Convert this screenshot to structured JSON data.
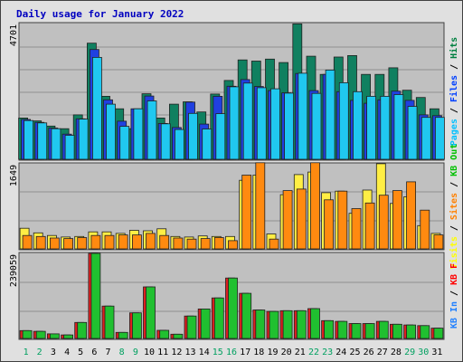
{
  "chart_data": {
    "type": "bar",
    "title": "Daily usage for January 2022",
    "days": [
      "1",
      "2",
      "3",
      "4",
      "5",
      "6",
      "7",
      "8",
      "9",
      "10",
      "11",
      "12",
      "13",
      "14",
      "15",
      "16",
      "17",
      "18",
      "19",
      "20",
      "21",
      "22",
      "23",
      "24",
      "25",
      "26",
      "27",
      "28",
      "29",
      "30",
      "31"
    ],
    "weekend_days": [
      1,
      2,
      8,
      9,
      15,
      16,
      22,
      23,
      29,
      30
    ],
    "panels": [
      {
        "name": "requests",
        "max_label": "4701",
        "ymax": 4701,
        "legend": [
          {
            "text": "Pages",
            "color": "#00c0ff"
          },
          {
            "text": "Files",
            "color": "#0040ff"
          },
          {
            "text": "Hits",
            "color": "#008040"
          }
        ],
        "series": [
          {
            "name": "Hits",
            "color": "#108060",
            "values": [
              1430,
              1330,
              1150,
              1060,
              1540,
              4020,
              2180,
              1750,
              1060,
              2270,
              1430,
              1910,
              1990,
              1640,
              2260,
              2730,
              3440,
              3400,
              3470,
              3350,
              4690,
              3570,
              2940,
              3540,
              3590,
              2940,
              2940,
              3170,
              2390,
              2140,
              1750
            ]
          },
          {
            "name": "Files",
            "color": "#2040e0",
            "values": [
              1380,
              1280,
              1080,
              870,
              1400,
              3800,
              2060,
              1320,
              1750,
              2190,
              1240,
              1100,
              1980,
              1220,
              2180,
              2530,
              2760,
              2520,
              2380,
              2300,
              2970,
              2380,
              2940,
              2340,
              2040,
              1940,
              2060,
              2360,
              2040,
              1540,
              1510
            ]
          },
          {
            "name": "Pages",
            "color": "#20c8f0",
            "values": [
              1340,
              1260,
              1060,
              830,
              1390,
              3530,
              1910,
              1140,
              1750,
              2020,
              1230,
              1030,
              1590,
              1050,
              1580,
              2510,
              2640,
              2480,
              2440,
              2290,
              2980,
              2280,
              3090,
              2650,
              2340,
              2180,
              2180,
              2240,
              1830,
              1450,
              1450
            ]
          }
        ]
      },
      {
        "name": "visitors",
        "max_label": "1649",
        "ymax": 1649,
        "legend": [
          {
            "text": "Visits",
            "color": "#ffff00"
          },
          {
            "text": "Sites",
            "color": "#ff8000"
          },
          {
            "text": "KB Out",
            "color": "#00c000"
          }
        ],
        "series": [
          {
            "name": "Visits",
            "color": "#ffee44",
            "values": [
              400,
              310,
              260,
              230,
              240,
              330,
              330,
              300,
              360,
              350,
              390,
              240,
              230,
              250,
              240,
              240,
              1330,
              1430,
              290,
              1050,
              1440,
              1490,
              1090,
              1120,
              690,
              1140,
              1650,
              880,
              1010,
              450,
              300
            ]
          },
          {
            "name": "Sites",
            "color": "#ff8a10",
            "values": [
              260,
              240,
              210,
              200,
              220,
              260,
              260,
              270,
              270,
              300,
              260,
              210,
              190,
              200,
              220,
              160,
              1430,
              1670,
              190,
              1130,
              1160,
              1670,
              950,
              1120,
              780,
              890,
              1040,
              1130,
              1300,
              750,
              270
            ]
          }
        ]
      },
      {
        "name": "traffic",
        "max_label": "239059",
        "ymax": 239059,
        "legend": [
          {
            "text": "KB In",
            "color": "#2080ff"
          },
          {
            "text": "KB F",
            "color": "#ff0000"
          }
        ],
        "series": [
          {
            "name": "KB F",
            "color": "#dd2020",
            "values": [
              22000,
              20000,
              13000,
              10000,
              45000,
              239059,
              91000,
              17000,
              72000,
              145000,
              23000,
              12000,
              63000,
              83000,
              114000,
              170000,
              127000,
              80000,
              76000,
              78000,
              78000,
              84000,
              50000,
              48000,
              42000,
              42000,
              48000,
              40000,
              38000,
              36000,
              29000
            ]
          },
          {
            "name": "KB In",
            "color": "#20c030",
            "values": [
              22000,
              20000,
              13000,
              10000,
              45000,
              239059,
              91000,
              17000,
              72000,
              145000,
              23000,
              12000,
              63000,
              83000,
              114000,
              170000,
              127000,
              80000,
              76000,
              78000,
              78000,
              84000,
              50000,
              48000,
              42000,
              42000,
              48000,
              40000,
              38000,
              36000,
              29000
            ]
          }
        ]
      }
    ]
  }
}
